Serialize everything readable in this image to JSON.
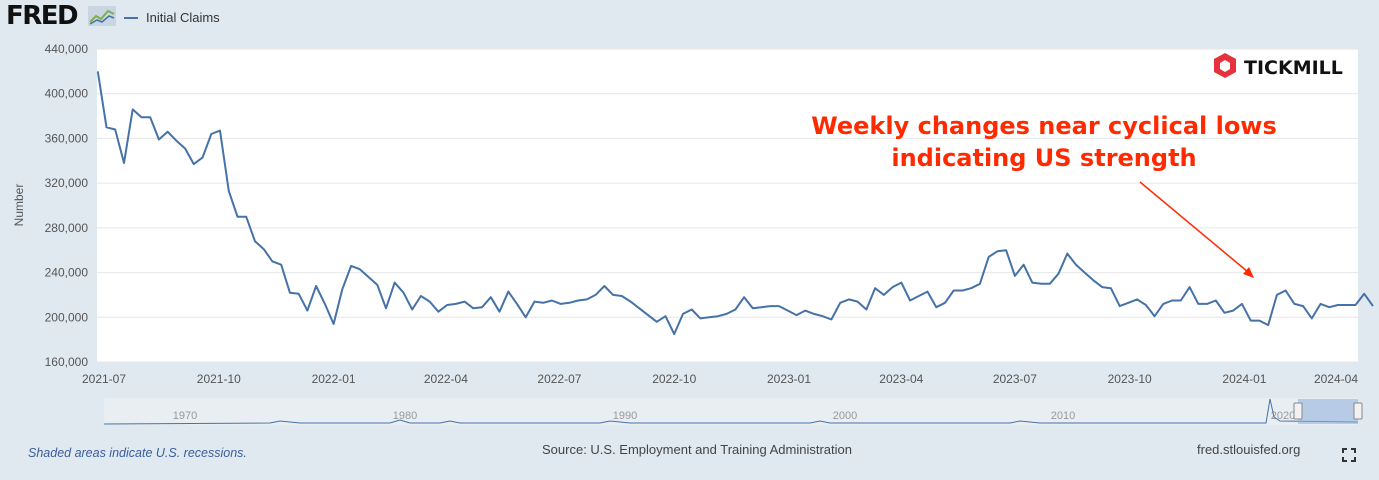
{
  "header": {
    "logo": "FRED",
    "legend_label": "Initial Claims"
  },
  "brand": {
    "name": "TICKMILL"
  },
  "annotation": {
    "line1": "Weekly changes near cyclical lows",
    "line2": "indicating US strength"
  },
  "footer": {
    "recession_note": "Shaded areas indicate U.S. recessions.",
    "source": "Source: U.S. Employment and Training Administration",
    "site": "fred.stlouisfed.org"
  },
  "colors": {
    "series": "#4572a7",
    "annotation": "#ff2a00",
    "background": "#e1e9f0",
    "brand": "#e5323c"
  },
  "chart_data": {
    "type": "line",
    "ylabel": "Number",
    "ylim": [
      160000,
      440000
    ],
    "y_ticks": [
      "160,000",
      "200,000",
      "240,000",
      "280,000",
      "320,000",
      "360,000",
      "400,000",
      "440,000"
    ],
    "x_ticks": [
      "2021-07",
      "2021-10",
      "2022-01",
      "2022-04",
      "2022-07",
      "2022-10",
      "2023-01",
      "2023-04",
      "2023-07",
      "2023-10",
      "2024-01",
      "2024-04"
    ],
    "grid": true,
    "series": [
      {
        "name": "Initial Claims",
        "start": "2021-06-26",
        "interval_days": 7,
        "values": [
          420000,
          370000,
          368000,
          338000,
          386000,
          379000,
          379000,
          359000,
          366000,
          358000,
          351000,
          337000,
          343000,
          364000,
          367000,
          313000,
          290000,
          290000,
          268000,
          261000,
          250000,
          247000,
          222000,
          221000,
          206000,
          228000,
          212000,
          194000,
          225000,
          246000,
          243000,
          236000,
          229000,
          208000,
          231000,
          222000,
          207000,
          219000,
          214000,
          205000,
          211000,
          212000,
          214000,
          208000,
          209000,
          218000,
          205000,
          223000,
          212000,
          200000,
          214000,
          213000,
          215000,
          212000,
          213000,
          215000,
          216000,
          220000,
          228000,
          220000,
          219000,
          214000,
          208000,
          202000,
          196000,
          201000,
          185000,
          203000,
          207000,
          199000,
          200000,
          201000,
          203000,
          207000,
          218000,
          208000,
          209000,
          210000,
          210000,
          206000,
          202000,
          206000,
          203000,
          201000,
          198000,
          213000,
          216000,
          214000,
          207000,
          226000,
          220000,
          227000,
          231000,
          215000,
          219000,
          223000,
          209000,
          213000,
          224000,
          224000,
          226000,
          230000,
          254000,
          259000,
          260000,
          237000,
          247000,
          231000,
          230000,
          230000,
          239000,
          257000,
          247000,
          240000,
          233000,
          227000,
          226000,
          210000,
          213000,
          216000,
          211000,
          201000,
          212000,
          215000,
          215000,
          227000,
          212000,
          212000,
          215000,
          204000,
          206000,
          212000,
          197000,
          197000,
          193000,
          220000,
          224000,
          212000,
          210000,
          199000,
          212000,
          209000,
          211000,
          211000,
          211000,
          221000,
          210000
        ]
      }
    ]
  },
  "navigator": {
    "labels": [
      "1970",
      "1980",
      "1990",
      "2000",
      "2010",
      "2020"
    ]
  }
}
